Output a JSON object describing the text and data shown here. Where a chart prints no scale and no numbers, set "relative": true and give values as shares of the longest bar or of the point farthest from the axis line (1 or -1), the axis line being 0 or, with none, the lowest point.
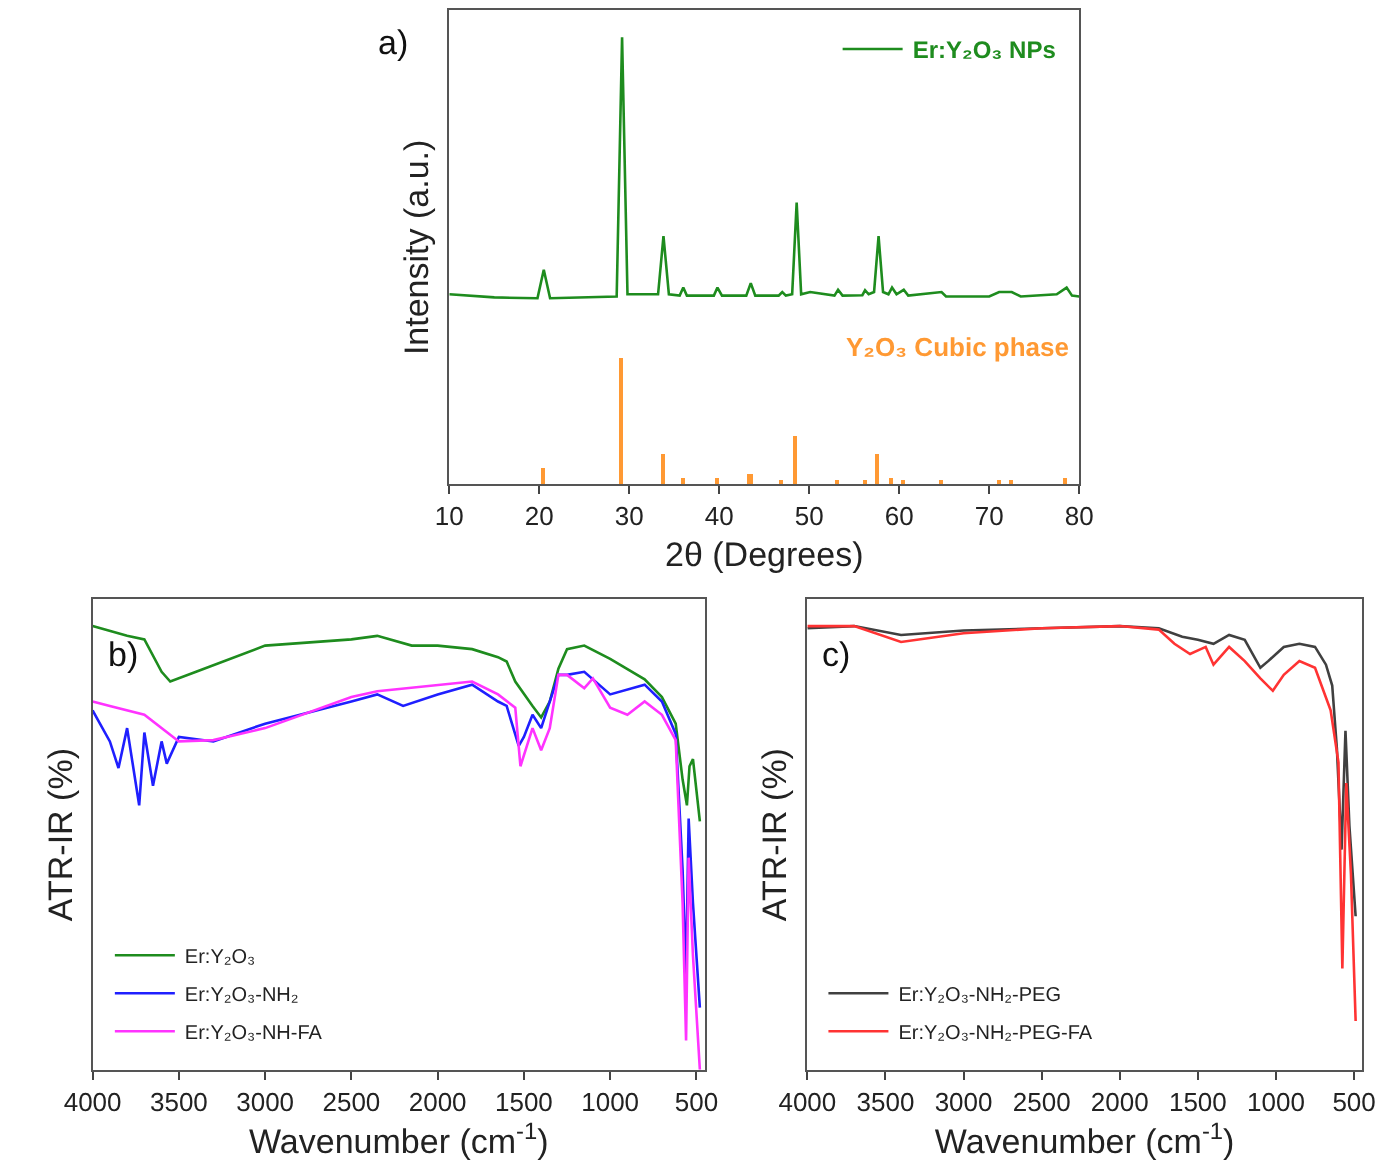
{
  "chart_data": [
    {
      "type": "line",
      "title": "a)",
      "xlabel": "2θ (Degrees)",
      "ylabel": "Intensity (a.u.)",
      "relative": true,
      "xlim": [
        10,
        80
      ],
      "xticks": [
        10,
        20,
        30,
        40,
        50,
        60,
        70,
        80
      ],
      "legend": "top right",
      "series": [
        {
          "name": "Er:Y₂O₃ NPs",
          "color": "#1e8c1e",
          "x": [
            10,
            15,
            19.8,
            20.5,
            21.2,
            28.6,
            29.2,
            29.8,
            33.2,
            33.8,
            34.4,
            35.6,
            36.0,
            36.4,
            39.4,
            39.8,
            40.3,
            43.0,
            43.5,
            44.0,
            46.6,
            47.0,
            47.4,
            48.1,
            48.6,
            49.1,
            50.1,
            52.8,
            53.2,
            53.7,
            55.9,
            56.2,
            56.6,
            57.2,
            57.7,
            58.2,
            58.8,
            59.2,
            59.7,
            60.5,
            61,
            64.7,
            65.2,
            70,
            71.1,
            72.5,
            73.5,
            77.5,
            78.6,
            79.2,
            80
          ],
          "values": [
            0.425,
            0.418,
            0.416,
            0.48,
            0.416,
            0.42,
            1.0,
            0.425,
            0.425,
            0.555,
            0.425,
            0.422,
            0.44,
            0.422,
            0.422,
            0.44,
            0.422,
            0.422,
            0.45,
            0.422,
            0.422,
            0.43,
            0.422,
            0.425,
            0.63,
            0.425,
            0.43,
            0.422,
            0.435,
            0.422,
            0.423,
            0.434,
            0.425,
            0.43,
            0.555,
            0.43,
            0.425,
            0.44,
            0.425,
            0.435,
            0.422,
            0.43,
            0.42,
            0.42,
            0.43,
            0.43,
            0.42,
            0.425,
            0.44,
            0.422,
            0.42
          ]
        },
        {
          "name": "Y₂O₃ Cubic phase",
          "type": "bar",
          "color": "#ff9933",
          "x": [
            20.5,
            29.2,
            33.8,
            36,
            39.8,
            43.5,
            47,
            48.6,
            53.2,
            56.2,
            57.7,
            59.1,
            60.5,
            64.7,
            71.1,
            72.5,
            78.6
          ],
          "values": [
            0.035,
            0.28,
            0.066,
            0.015,
            0.015,
            0.02,
            0.008,
            0.106,
            0.01,
            0.01,
            0.066,
            0.012,
            0.01,
            0.008,
            0.01,
            0.01,
            0.015
          ]
        }
      ]
    },
    {
      "type": "line",
      "title": "b)",
      "xlabel": "Wavenumber (cm$^{-1}$)",
      "ylabel": "ATR-IR (%)",
      "relative": true,
      "xlim": [
        4000,
        450
      ],
      "xticks": [
        4000,
        3500,
        3000,
        2500,
        2000,
        1500,
        1000,
        500
      ],
      "legend": "bottom left",
      "series": [
        {
          "name": "Er:Y₂O₃",
          "color": "#1e8c1e",
          "x": [
            4000,
            3800,
            3700,
            3600,
            3550,
            3400,
            3000,
            2500,
            2350,
            2150,
            2000,
            1800,
            1650,
            1600,
            1550,
            1450,
            1400,
            1350,
            1300,
            1250,
            1150,
            1000,
            800,
            700,
            620,
            580,
            555,
            540,
            520,
            480
          ],
          "values": [
            1.0,
            0.978,
            0.97,
            0.897,
            0.875,
            0.897,
            0.956,
            0.97,
            0.978,
            0.956,
            0.956,
            0.948,
            0.93,
            0.92,
            0.875,
            0.82,
            0.794,
            0.83,
            0.904,
            0.948,
            0.956,
            0.926,
            0.88,
            0.84,
            0.78,
            0.654,
            0.596,
            0.684,
            0.7,
            0.56
          ]
        },
        {
          "name": "Er:Y₂O₃-NH₂",
          "color": "#1f1fff",
          "x": [
            4000,
            3900,
            3850,
            3800,
            3730,
            3700,
            3650,
            3600,
            3570,
            3500,
            3300,
            3000,
            2500,
            2350,
            2200,
            2000,
            1800,
            1650,
            1600,
            1530,
            1500,
            1450,
            1400,
            1300,
            1250,
            1150,
            1000,
            800,
            700,
            620,
            580,
            560,
            545,
            520,
            480
          ],
          "values": [
            0.81,
            0.74,
            0.68,
            0.77,
            0.596,
            0.76,
            0.64,
            0.74,
            0.69,
            0.75,
            0.74,
            0.78,
            0.83,
            0.846,
            0.82,
            0.846,
            0.868,
            0.83,
            0.82,
            0.73,
            0.75,
            0.8,
            0.77,
            0.89,
            0.89,
            0.897,
            0.846,
            0.868,
            0.83,
            0.757,
            0.45,
            0.21,
            0.566,
            0.375,
            0.14
          ]
        },
        {
          "name": "Er:Y₂O₃-NH-FA",
          "color": "#ff33ff",
          "x": [
            4000,
            3900,
            3700,
            3500,
            3300,
            3000,
            2500,
            2350,
            1800,
            1650,
            1550,
            1520,
            1450,
            1400,
            1350,
            1300,
            1250,
            1150,
            1100,
            1000,
            900,
            800,
            700,
            620,
            580,
            560,
            545,
            520,
            480
          ],
          "values": [
            0.83,
            0.82,
            0.8,
            0.74,
            0.743,
            0.77,
            0.84,
            0.853,
            0.875,
            0.846,
            0.816,
            0.684,
            0.77,
            0.72,
            0.77,
            0.89,
            0.89,
            0.86,
            0.882,
            0.816,
            0.8,
            0.83,
            0.8,
            0.743,
            0.375,
            0.066,
            0.478,
            0.257,
            0.0
          ]
        }
      ]
    },
    {
      "type": "line",
      "title": "c)",
      "xlabel": "Wavenumber (cm$^{-1}$)",
      "ylabel": "ATR-IR (%)",
      "relative": true,
      "xlim": [
        4000,
        450
      ],
      "xticks": [
        4000,
        3500,
        3000,
        2500,
        2000,
        1500,
        1000,
        500
      ],
      "legend": "bottom left",
      "series": [
        {
          "name": "Er:Y₂O₃-NH₂-PEG",
          "color": "#404040",
          "x": [
            4000,
            3700,
            3400,
            3000,
            2500,
            2000,
            1750,
            1600,
            1500,
            1400,
            1300,
            1200,
            1100,
            1050,
            950,
            850,
            750,
            680,
            640,
            610,
            580,
            555,
            530,
            490
          ],
          "values": [
            0.995,
            1.0,
            0.98,
            0.99,
            0.995,
            1.0,
            0.995,
            0.976,
            0.969,
            0.96,
            0.98,
            0.969,
            0.906,
            0.921,
            0.953,
            0.96,
            0.953,
            0.913,
            0.866,
            0.724,
            0.496,
            0.764,
            0.55,
            0.346
          ]
        },
        {
          "name": "Er:Y₂O₃-NH₂-PEG-FA",
          "color": "#ff3333",
          "x": [
            4000,
            3700,
            3400,
            3000,
            2500,
            2000,
            1750,
            1650,
            1550,
            1450,
            1400,
            1300,
            1200,
            1100,
            1020,
            950,
            850,
            750,
            650,
            600,
            575,
            550,
            520,
            490
          ],
          "values": [
            1.0,
            1.0,
            0.964,
            0.984,
            0.995,
            1.0,
            0.992,
            0.96,
            0.937,
            0.953,
            0.913,
            0.953,
            0.921,
            0.882,
            0.854,
            0.89,
            0.921,
            0.906,
            0.81,
            0.693,
            0.228,
            0.646,
            0.44,
            0.11
          ]
        }
      ]
    }
  ]
}
